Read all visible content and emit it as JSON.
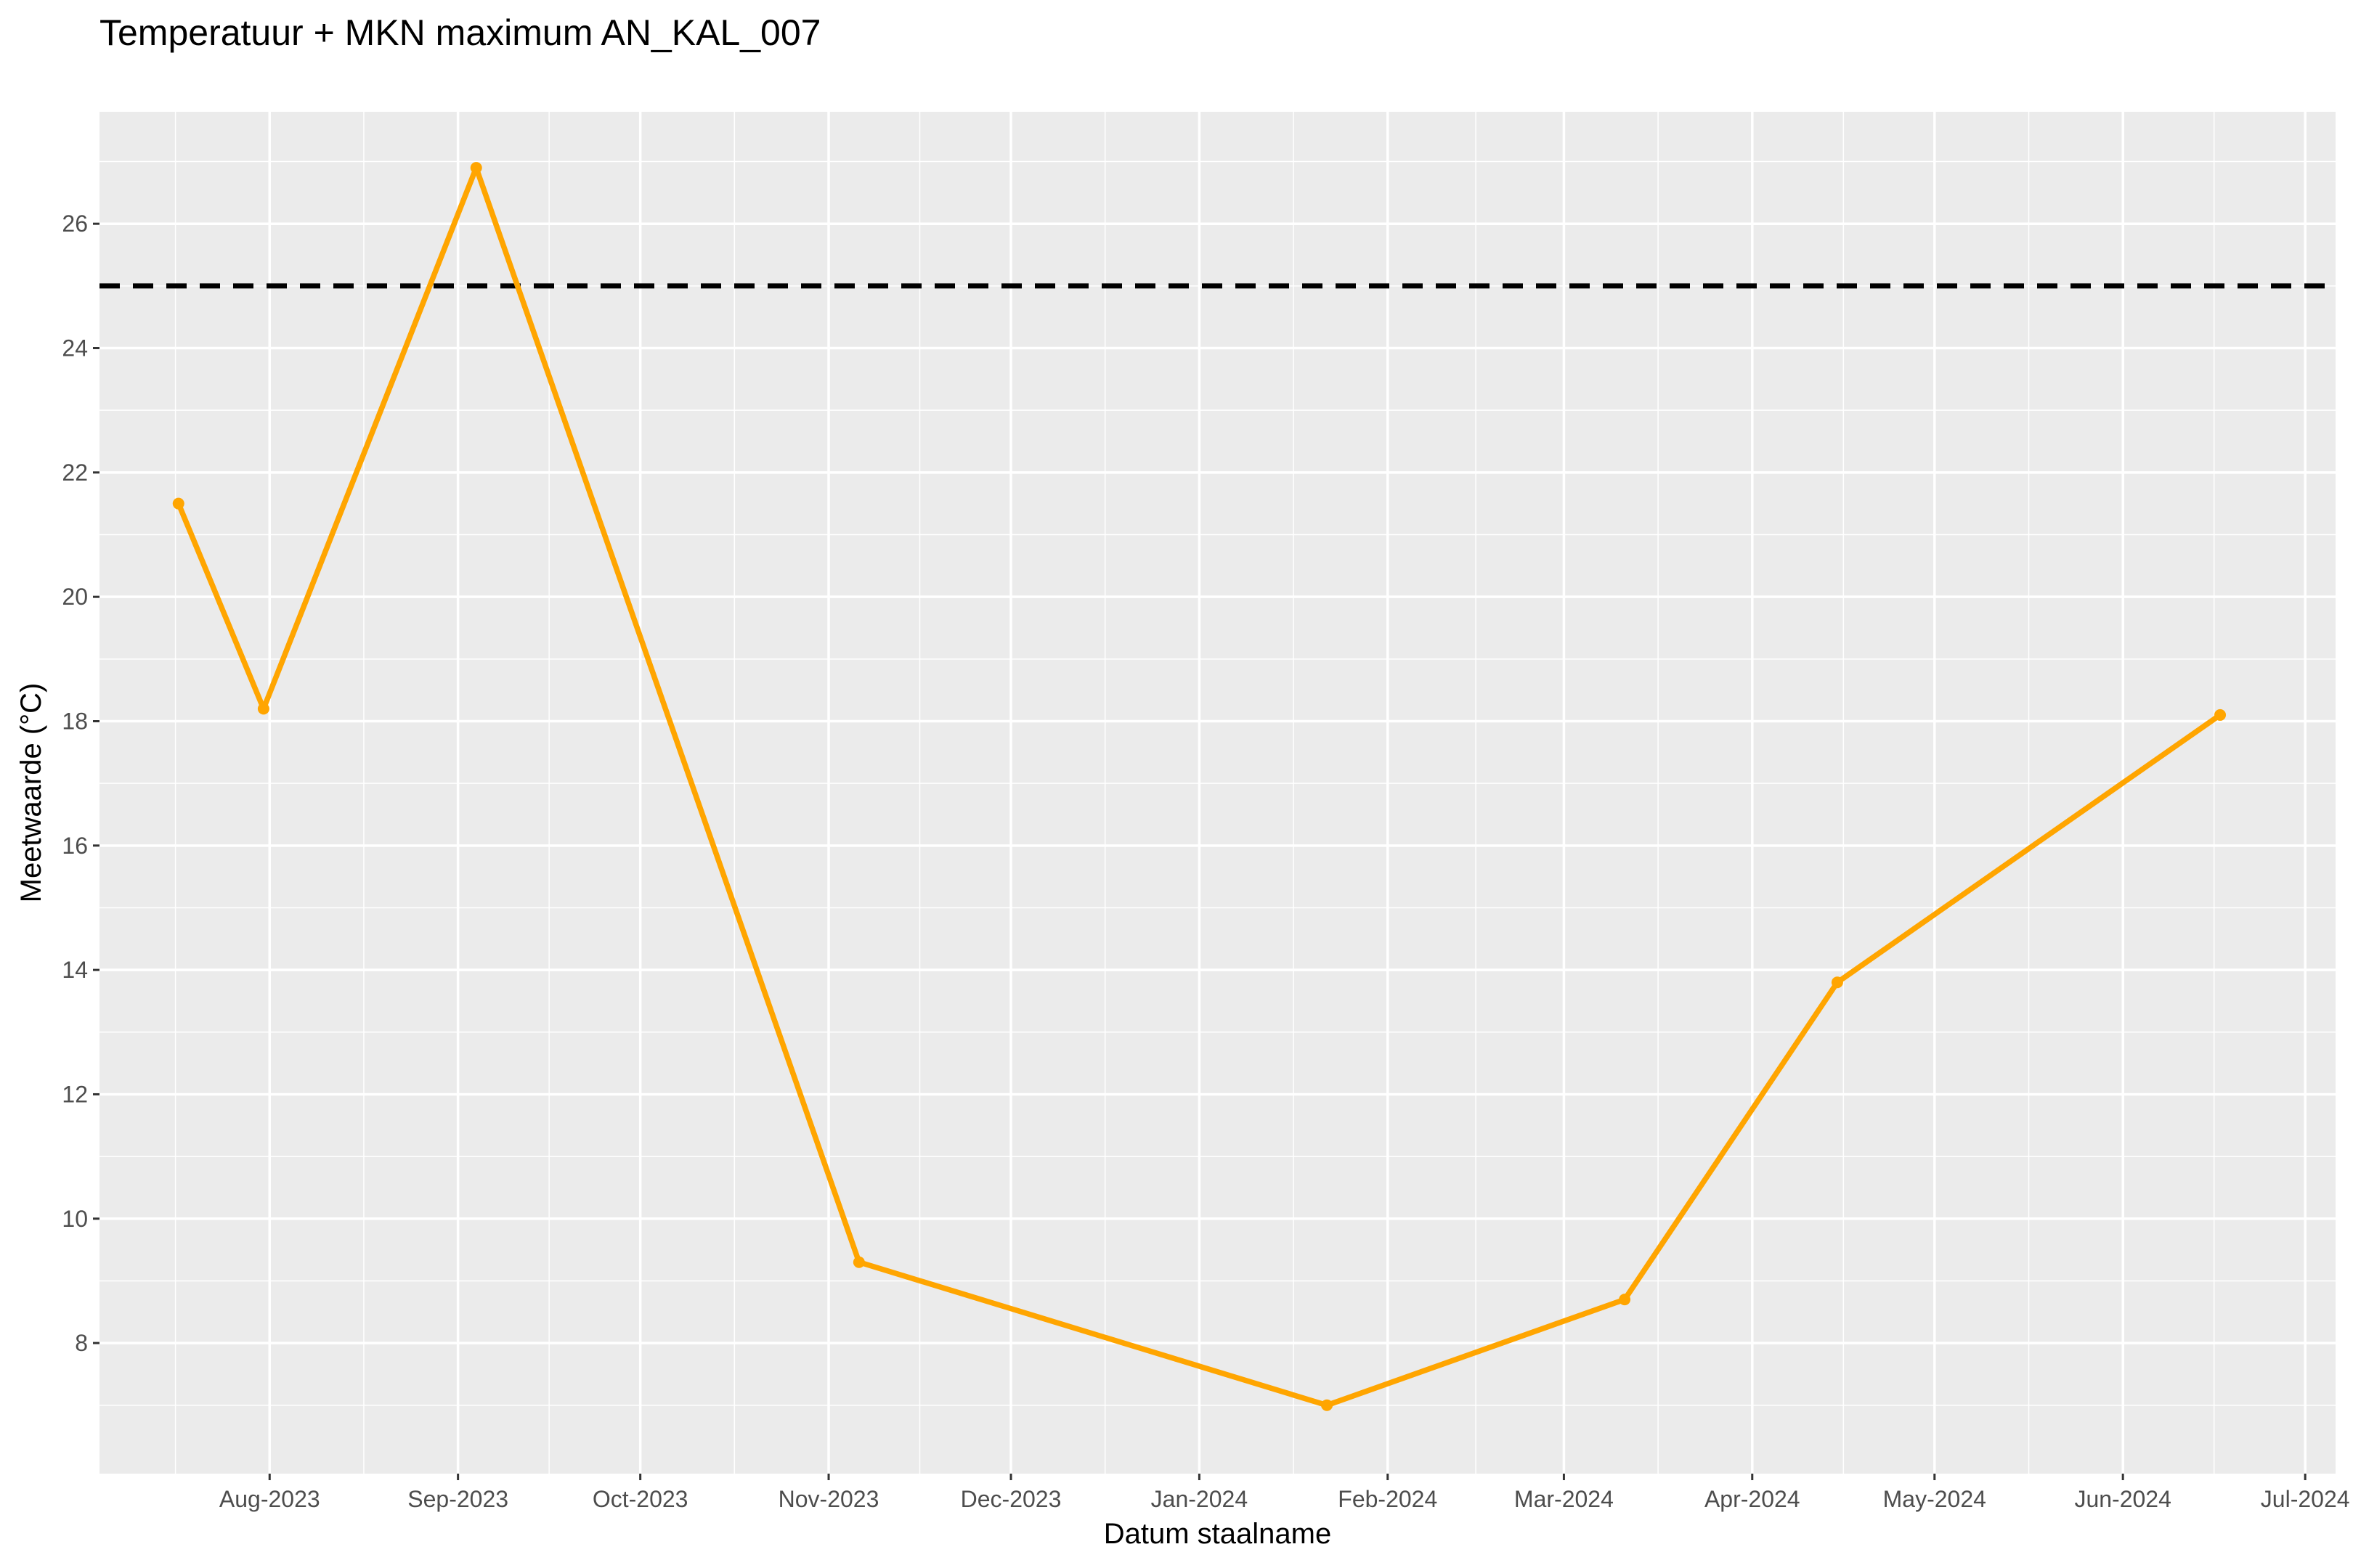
{
  "chart_data": {
    "type": "line",
    "title": "Temperatuur + MKN maximum AN_KAL_007",
    "xlabel": "Datum staalname",
    "ylabel": "Meetwaarde (°C)",
    "x_tick_labels": [
      "Aug-2023",
      "Sep-2023",
      "Oct-2023",
      "Nov-2023",
      "Dec-2023",
      "Jan-2024",
      "Feb-2024",
      "Mar-2024",
      "Apr-2024",
      "May-2024",
      "Jun-2024",
      "Jul-2024"
    ],
    "x_tick_dates": [
      "2023-08-01",
      "2023-09-01",
      "2023-10-01",
      "2023-11-01",
      "2023-12-01",
      "2024-01-01",
      "2024-02-01",
      "2024-03-01",
      "2024-04-01",
      "2024-05-01",
      "2024-06-01",
      "2024-07-01"
    ],
    "y_ticks": [
      8,
      10,
      12,
      14,
      16,
      18,
      20,
      22,
      24,
      26
    ],
    "xlim": [
      "2023-07-04",
      "2024-07-06"
    ],
    "ylim": [
      5.9,
      27.8
    ],
    "grid": true,
    "background": "#ebebeb",
    "series": [
      {
        "color": "#ffa500",
        "x": [
          "2023-07-17",
          "2023-07-31",
          "2023-09-04",
          "2023-11-06",
          "2024-01-22",
          "2024-03-11",
          "2024-04-15",
          "2024-06-17"
        ],
        "y": [
          21.5,
          18.2,
          26.9,
          9.3,
          7.0,
          8.7,
          13.8,
          18.1
        ]
      }
    ],
    "reference_line": {
      "y": 25,
      "style": "dashed",
      "color": "#000000"
    }
  }
}
